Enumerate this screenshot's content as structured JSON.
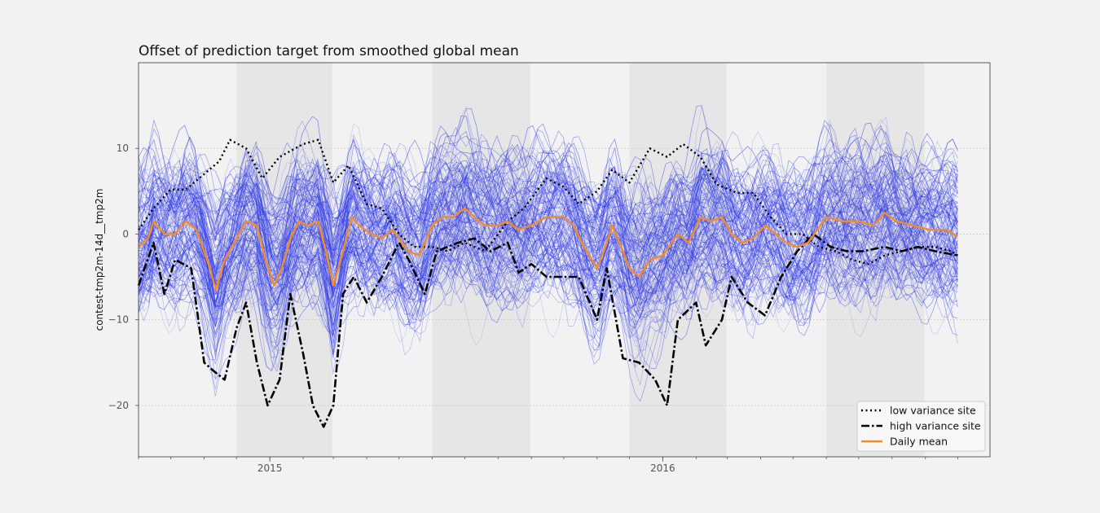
{
  "chart_data": {
    "type": "line",
    "title": "Offset of prediction target from smoothed global mean",
    "xlabel": "",
    "ylabel": "contest-tmp2m-14d__tmp2m",
    "x_range": [
      "2014-09-01",
      "2016-10-31"
    ],
    "xticks": [
      {
        "date": "2015-01-01",
        "label": "2015"
      },
      {
        "date": "2016-01-01",
        "label": "2016"
      }
    ],
    "ylim": [
      -26,
      20
    ],
    "yticks": [
      10,
      0,
      -10,
      -20
    ],
    "grid": true,
    "shaded_periods": [
      [
        "2014-12-01",
        "2015-02-28"
      ],
      [
        "2015-06-01",
        "2015-08-31"
      ],
      [
        "2015-12-01",
        "2016-02-29"
      ],
      [
        "2016-06-01",
        "2016-08-31"
      ]
    ],
    "background_ensemble": {
      "description_color": "#2b36e8",
      "site_count_note": "many sites"
    },
    "legend_position": "lower-right",
    "series": [
      {
        "name": "low variance site",
        "style": "dotted",
        "color": "#000000",
        "points": [
          [
            "2014-09-01",
            0.5
          ],
          [
            "2014-09-15",
            3
          ],
          [
            "2014-10-01",
            5.2
          ],
          [
            "2014-10-15",
            5.2
          ],
          [
            "2014-11-01",
            7
          ],
          [
            "2014-11-15",
            8.5
          ],
          [
            "2014-11-25",
            11
          ],
          [
            "2014-12-10",
            10
          ],
          [
            "2014-12-25",
            6.5
          ],
          [
            "2015-01-10",
            9
          ],
          [
            "2015-02-01",
            10.5
          ],
          [
            "2015-02-15",
            11
          ],
          [
            "2015-03-01",
            6
          ],
          [
            "2015-03-15",
            8
          ],
          [
            "2015-04-01",
            3.5
          ],
          [
            "2015-04-15",
            3
          ],
          [
            "2015-05-01",
            0
          ],
          [
            "2015-05-15",
            -1.5
          ],
          [
            "2015-06-01",
            -1.5
          ],
          [
            "2015-06-15",
            -2
          ],
          [
            "2015-07-01",
            -1
          ],
          [
            "2015-07-20",
            -2
          ],
          [
            "2015-08-10",
            1.5
          ],
          [
            "2015-08-25",
            3
          ],
          [
            "2015-09-15",
            6.5
          ],
          [
            "2015-10-01",
            5.5
          ],
          [
            "2015-10-15",
            3.5
          ],
          [
            "2015-11-01",
            5
          ],
          [
            "2015-11-15",
            7.5
          ],
          [
            "2015-12-01",
            6
          ],
          [
            "2015-12-20",
            10
          ],
          [
            "2016-01-05",
            9
          ],
          [
            "2016-01-20",
            10.5
          ],
          [
            "2016-02-05",
            9
          ],
          [
            "2016-02-20",
            5.8
          ],
          [
            "2016-03-10",
            4.8
          ],
          [
            "2016-03-25",
            4.8
          ],
          [
            "2016-04-10",
            2
          ],
          [
            "2016-04-25",
            0
          ],
          [
            "2016-05-10",
            0
          ],
          [
            "2016-05-25",
            -1.5
          ],
          [
            "2016-06-10",
            -2
          ],
          [
            "2016-06-25",
            -3
          ],
          [
            "2016-07-10",
            -3.5
          ],
          [
            "2016-07-25",
            -2.5
          ],
          [
            "2016-08-10",
            -2
          ],
          [
            "2016-08-25",
            -1.5
          ],
          [
            "2016-09-10",
            -1.5
          ],
          [
            "2016-09-25",
            -2
          ],
          [
            "2016-10-01",
            -2.5
          ]
        ]
      },
      {
        "name": "high variance site",
        "style": "dashdot",
        "color": "#000000",
        "points": [
          [
            "2014-09-01",
            -6
          ],
          [
            "2014-09-15",
            -1
          ],
          [
            "2014-09-25",
            -7
          ],
          [
            "2014-10-05",
            -3
          ],
          [
            "2014-10-20",
            -4
          ],
          [
            "2014-11-01",
            -15
          ],
          [
            "2014-11-10",
            -16
          ],
          [
            "2014-11-20",
            -17
          ],
          [
            "2014-12-01",
            -11
          ],
          [
            "2014-12-10",
            -8
          ],
          [
            "2014-12-20",
            -15
          ],
          [
            "2014-12-30",
            -20
          ],
          [
            "2015-01-10",
            -17
          ],
          [
            "2015-01-20",
            -7
          ],
          [
            "2015-02-01",
            -14
          ],
          [
            "2015-02-10",
            -20
          ],
          [
            "2015-02-20",
            -22.5
          ],
          [
            "2015-03-01",
            -20
          ],
          [
            "2015-03-10",
            -7
          ],
          [
            "2015-03-20",
            -5
          ],
          [
            "2015-04-01",
            -8
          ],
          [
            "2015-04-15",
            -5
          ],
          [
            "2015-05-01",
            -1
          ],
          [
            "2015-05-10",
            -3
          ],
          [
            "2015-05-25",
            -7
          ],
          [
            "2015-06-05",
            -2
          ],
          [
            "2015-06-25",
            -1
          ],
          [
            "2015-07-10",
            -0.5
          ],
          [
            "2015-07-25",
            -2
          ],
          [
            "2015-08-10",
            -1
          ],
          [
            "2015-08-20",
            -4.5
          ],
          [
            "2015-09-01",
            -3.5
          ],
          [
            "2015-09-15",
            -5
          ],
          [
            "2015-10-01",
            -5
          ],
          [
            "2015-10-15",
            -5
          ],
          [
            "2015-11-01",
            -10
          ],
          [
            "2015-11-10",
            -4
          ],
          [
            "2015-11-25",
            -14.5
          ],
          [
            "2015-12-10",
            -15
          ],
          [
            "2015-12-25",
            -17
          ],
          [
            "2016-01-05",
            -20
          ],
          [
            "2016-01-15",
            -10
          ],
          [
            "2016-02-01",
            -8
          ],
          [
            "2016-02-10",
            -13
          ],
          [
            "2016-02-25",
            -10
          ],
          [
            "2016-03-05",
            -5
          ],
          [
            "2016-03-20",
            -8
          ],
          [
            "2016-04-05",
            -9.5
          ],
          [
            "2016-04-20",
            -5
          ],
          [
            "2016-05-05",
            -2
          ],
          [
            "2016-05-20",
            0
          ],
          [
            "2016-06-05",
            -1.5
          ],
          [
            "2016-06-20",
            -2
          ],
          [
            "2016-07-05",
            -2
          ],
          [
            "2016-07-25",
            -1.5
          ],
          [
            "2016-08-10",
            -2
          ],
          [
            "2016-08-25",
            -1.5
          ],
          [
            "2016-09-10",
            -2
          ],
          [
            "2016-10-01",
            -2.5
          ]
        ]
      },
      {
        "name": "Daily mean",
        "style": "solid",
        "color": "#f28c28",
        "points": [
          [
            "2014-09-01",
            -1.5
          ],
          [
            "2014-09-10",
            -0.5
          ],
          [
            "2014-09-15",
            1.5
          ],
          [
            "2014-09-25",
            0
          ],
          [
            "2014-10-05",
            0
          ],
          [
            "2014-10-15",
            1.5
          ],
          [
            "2014-10-25",
            0.5
          ],
          [
            "2014-11-05",
            -3.5
          ],
          [
            "2014-11-12",
            -6.5
          ],
          [
            "2014-11-20",
            -3
          ],
          [
            "2014-12-01",
            -0.5
          ],
          [
            "2014-12-10",
            1.5
          ],
          [
            "2014-12-20",
            1
          ],
          [
            "2014-12-28",
            -3
          ],
          [
            "2015-01-05",
            -6
          ],
          [
            "2015-01-12",
            -4
          ],
          [
            "2015-01-20",
            -0.5
          ],
          [
            "2015-01-28",
            1.5
          ],
          [
            "2015-02-05",
            1
          ],
          [
            "2015-02-15",
            1.5
          ],
          [
            "2015-02-22",
            -2
          ],
          [
            "2015-03-01",
            -6
          ],
          [
            "2015-03-10",
            -2
          ],
          [
            "2015-03-18",
            2
          ],
          [
            "2015-03-25",
            1
          ],
          [
            "2015-04-05",
            0
          ],
          [
            "2015-04-15",
            -0.5
          ],
          [
            "2015-04-25",
            0.5
          ],
          [
            "2015-05-01",
            -0.5
          ],
          [
            "2015-05-10",
            -2
          ],
          [
            "2015-05-20",
            -2.5
          ],
          [
            "2015-06-01",
            1
          ],
          [
            "2015-06-10",
            2
          ],
          [
            "2015-06-20",
            2
          ],
          [
            "2015-07-01",
            3
          ],
          [
            "2015-07-10",
            2
          ],
          [
            "2015-07-20",
            1
          ],
          [
            "2015-08-01",
            1
          ],
          [
            "2015-08-10",
            1.5
          ],
          [
            "2015-08-20",
            0.5
          ],
          [
            "2015-09-01",
            1
          ],
          [
            "2015-09-15",
            2
          ],
          [
            "2015-10-01",
            2
          ],
          [
            "2015-10-10",
            1
          ],
          [
            "2015-10-20",
            -1.5
          ],
          [
            "2015-11-01",
            -4
          ],
          [
            "2015-11-10",
            -1
          ],
          [
            "2015-11-15",
            1
          ],
          [
            "2015-11-22",
            -1
          ],
          [
            "2015-12-01",
            -4
          ],
          [
            "2015-12-10",
            -5
          ],
          [
            "2015-12-20",
            -3
          ],
          [
            "2016-01-01",
            -2.5
          ],
          [
            "2016-01-15",
            0
          ],
          [
            "2016-01-25",
            -1
          ],
          [
            "2016-02-05",
            2
          ],
          [
            "2016-02-15",
            1.5
          ],
          [
            "2016-02-25",
            2
          ],
          [
            "2016-03-05",
            0
          ],
          [
            "2016-03-15",
            -1
          ],
          [
            "2016-03-25",
            -0.5
          ],
          [
            "2016-04-05",
            1
          ],
          [
            "2016-04-15",
            0
          ],
          [
            "2016-04-25",
            -1
          ],
          [
            "2016-05-05",
            -1.5
          ],
          [
            "2016-05-15",
            -1
          ],
          [
            "2016-06-01",
            2
          ],
          [
            "2016-06-15",
            1.5
          ],
          [
            "2016-07-01",
            1.5
          ],
          [
            "2016-07-15",
            1
          ],
          [
            "2016-07-25",
            2.5
          ],
          [
            "2016-08-05",
            1.5
          ],
          [
            "2016-08-20",
            1
          ],
          [
            "2016-09-05",
            0.5
          ],
          [
            "2016-09-20",
            0.5
          ],
          [
            "2016-10-01",
            -0.3
          ]
        ]
      }
    ]
  }
}
